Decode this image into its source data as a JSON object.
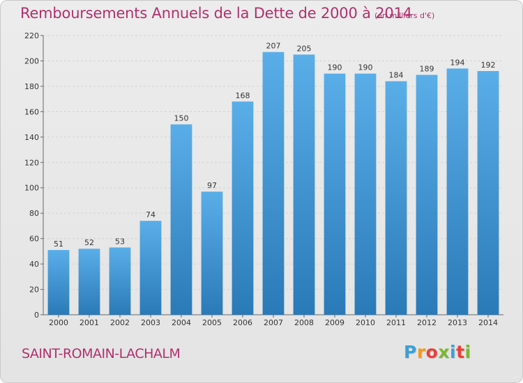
{
  "title": "Remboursements Annuels de la Dette de 2000 à 2014",
  "subtitle": "(en milliers d'€)",
  "commune": "SAINT-ROMAIN-LACHALM",
  "logo": {
    "letters": [
      "P",
      "r",
      "o",
      "x",
      "i",
      "t",
      "i"
    ],
    "colors": [
      "#3aa0d8",
      "#f39a1f",
      "#e8403a",
      "#7ab82e",
      "#3aa0d8",
      "#e8403a",
      "#7ab82e"
    ]
  },
  "colors": {
    "bar_top": "#5aaee8",
    "bar_bottom": "#2a7ab8",
    "title": "#b0306e"
  },
  "chart_data": {
    "type": "bar",
    "categories": [
      "2000",
      "2001",
      "2002",
      "2003",
      "2004",
      "2005",
      "2006",
      "2007",
      "2008",
      "2009",
      "2010",
      "2011",
      "2012",
      "2013",
      "2014"
    ],
    "values": [
      51,
      52,
      53,
      74,
      150,
      97,
      168,
      207,
      205,
      190,
      190,
      184,
      189,
      194,
      192
    ],
    "ylim": [
      0,
      220
    ],
    "yticks": [
      0,
      20,
      40,
      60,
      80,
      100,
      120,
      140,
      160,
      180,
      200,
      220
    ],
    "grid": true,
    "xlabel": "",
    "ylabel": ""
  }
}
